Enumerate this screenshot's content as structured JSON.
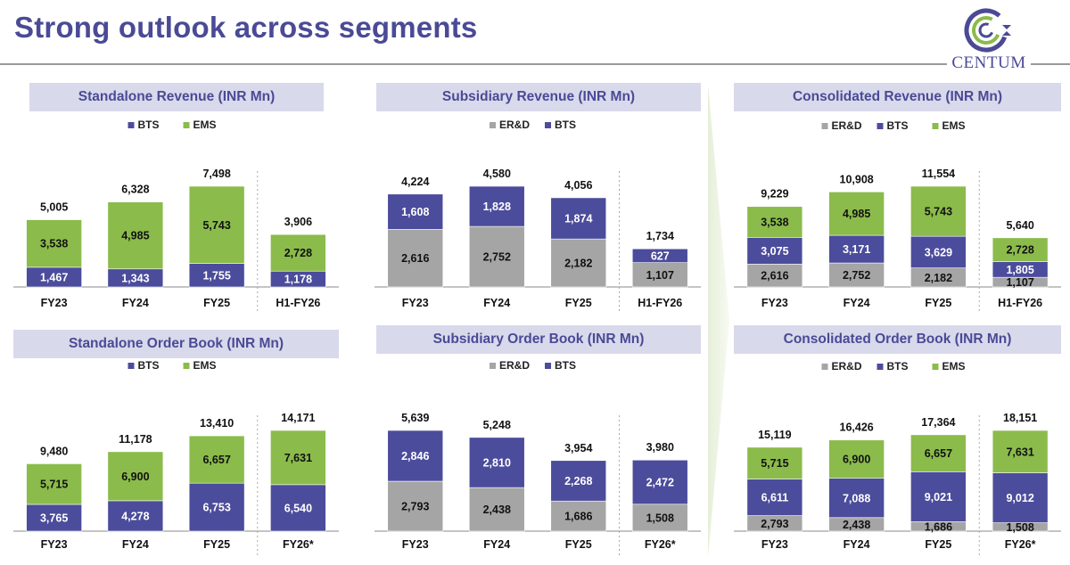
{
  "header": {
    "title": "Strong outlook across segments",
    "logo_text": "CENTUM"
  },
  "colors": {
    "ER&D": "#a5a5a5",
    "BTS": "#4c4c9c",
    "EMS": "#8bbb4b",
    "title": "#4a4a96",
    "header_bg": "#d9d9ec"
  },
  "chart_data": [
    {
      "id": "standalone-revenue",
      "type": "bar",
      "stacked": true,
      "title": "Standalone Revenue (INR Mn)",
      "legend": [
        "BTS",
        "EMS"
      ],
      "categories": [
        "FY23",
        "FY24",
        "FY25",
        "H1-FY26"
      ],
      "series": [
        {
          "name": "BTS",
          "values": [
            1467,
            1343,
            1755,
            1178
          ]
        },
        {
          "name": "EMS",
          "values": [
            3538,
            4985,
            5743,
            2728
          ]
        }
      ],
      "totals": [
        5005,
        6328,
        7498,
        3906
      ],
      "labels": {
        "BTS": [
          "1,467",
          "1,343",
          "1,755",
          "1,178"
        ],
        "EMS": [
          "3,538",
          "4,985",
          "5,743",
          "2,728"
        ],
        "totals": [
          "5,005",
          "6,328",
          "7,498",
          "3,906"
        ]
      }
    },
    {
      "id": "subsidiary-revenue",
      "type": "bar",
      "stacked": true,
      "title": "Subsidiary Revenue (INR Mn)",
      "legend": [
        "ER&D",
        "BTS"
      ],
      "categories": [
        "FY23",
        "FY24",
        "FY25",
        "H1-FY26"
      ],
      "series": [
        {
          "name": "ER&D",
          "values": [
            2616,
            2752,
            2182,
            1107
          ]
        },
        {
          "name": "BTS",
          "values": [
            1608,
            1828,
            1874,
            627
          ]
        }
      ],
      "totals": [
        4224,
        4580,
        4056,
        1734
      ],
      "labels": {
        "ER&D": [
          "2,616",
          "2,752",
          "2,182",
          "1,107"
        ],
        "BTS": [
          "1,608",
          "1,828",
          "1,874",
          "627"
        ],
        "totals": [
          "4,224",
          "4,580",
          "4,056",
          "1,734"
        ]
      }
    },
    {
      "id": "consolidated-revenue",
      "type": "bar",
      "stacked": true,
      "title": "Consolidated Revenue (INR Mn)",
      "legend": [
        "ER&D",
        "BTS",
        "EMS"
      ],
      "categories": [
        "FY23",
        "FY24",
        "FY25",
        "H1-FY26"
      ],
      "series": [
        {
          "name": "ER&D",
          "values": [
            2616,
            2752,
            2182,
            1107
          ]
        },
        {
          "name": "BTS",
          "values": [
            3075,
            3171,
            3629,
            1805
          ]
        },
        {
          "name": "EMS",
          "values": [
            3538,
            4985,
            5743,
            2728
          ]
        }
      ],
      "totals": [
        9229,
        10908,
        11554,
        5640
      ],
      "labels": {
        "ER&D": [
          "2,616",
          "2,752",
          "2,182",
          "1,107"
        ],
        "BTS": [
          "3,075",
          "3,171",
          "3,629",
          "1,805"
        ],
        "EMS": [
          "3,538",
          "4,985",
          "5,743",
          "2,728"
        ],
        "totals": [
          "9,229",
          "10,908",
          "11,554",
          "5,640"
        ]
      }
    },
    {
      "id": "standalone-order-book",
      "type": "bar",
      "stacked": true,
      "title": "Standalone Order Book (INR Mn)",
      "legend": [
        "BTS",
        "EMS"
      ],
      "categories": [
        "FY23",
        "FY24",
        "FY25",
        "FY26*"
      ],
      "series": [
        {
          "name": "BTS",
          "values": [
            3765,
            4278,
            6753,
            6540
          ]
        },
        {
          "name": "EMS",
          "values": [
            5715,
            6900,
            6657,
            7631
          ]
        }
      ],
      "totals": [
        9480,
        11178,
        13410,
        14171
      ],
      "labels": {
        "BTS": [
          "3,765",
          "4,278",
          "6,753",
          "6,540"
        ],
        "EMS": [
          "5,715",
          "6,900",
          "6,657",
          "7,631"
        ],
        "totals": [
          "9,480",
          "11,178",
          "13,410",
          "14,171"
        ]
      }
    },
    {
      "id": "subsidiary-order-book",
      "type": "bar",
      "stacked": true,
      "title": "Subsidiary Order Book (INR Mn)",
      "legend": [
        "ER&D",
        "BTS"
      ],
      "categories": [
        "FY23",
        "FY24",
        "FY25",
        "FY26*"
      ],
      "series": [
        {
          "name": "ER&D",
          "values": [
            2793,
            2438,
            1686,
            1508
          ]
        },
        {
          "name": "BTS",
          "values": [
            2846,
            2810,
            2268,
            2472
          ]
        }
      ],
      "totals": [
        5639,
        5248,
        3954,
        3980
      ],
      "labels": {
        "ER&D": [
          "2,793",
          "2,438",
          "1,686",
          "1,508"
        ],
        "BTS": [
          "2,846",
          "2,810",
          "2,268",
          "2,472"
        ],
        "totals": [
          "5,639",
          "5,248",
          "3,954",
          "3,980"
        ]
      }
    },
    {
      "id": "consolidated-order-book",
      "type": "bar",
      "stacked": true,
      "title": "Consolidated Order Book (INR Mn)",
      "legend": [
        "ER&D",
        "BTS",
        "EMS"
      ],
      "categories": [
        "FY23",
        "FY24",
        "FY25",
        "FY26*"
      ],
      "series": [
        {
          "name": "ER&D",
          "values": [
            2793,
            2438,
            1686,
            1508
          ]
        },
        {
          "name": "BTS",
          "values": [
            6611,
            7088,
            9021,
            9012
          ]
        },
        {
          "name": "EMS",
          "values": [
            5715,
            6900,
            6657,
            7631
          ]
        }
      ],
      "totals": [
        15119,
        16426,
        17364,
        18151
      ],
      "labels": {
        "ER&D": [
          "2,793",
          "2,438",
          "1,686",
          "1,508"
        ],
        "BTS": [
          "6,611",
          "7,088",
          "9,021",
          "9,012"
        ],
        "EMS": [
          "5,715",
          "6,900",
          "6,657",
          "7,631"
        ],
        "totals": [
          "15,119",
          "16,426",
          "17,364",
          "18,151"
        ]
      }
    }
  ]
}
